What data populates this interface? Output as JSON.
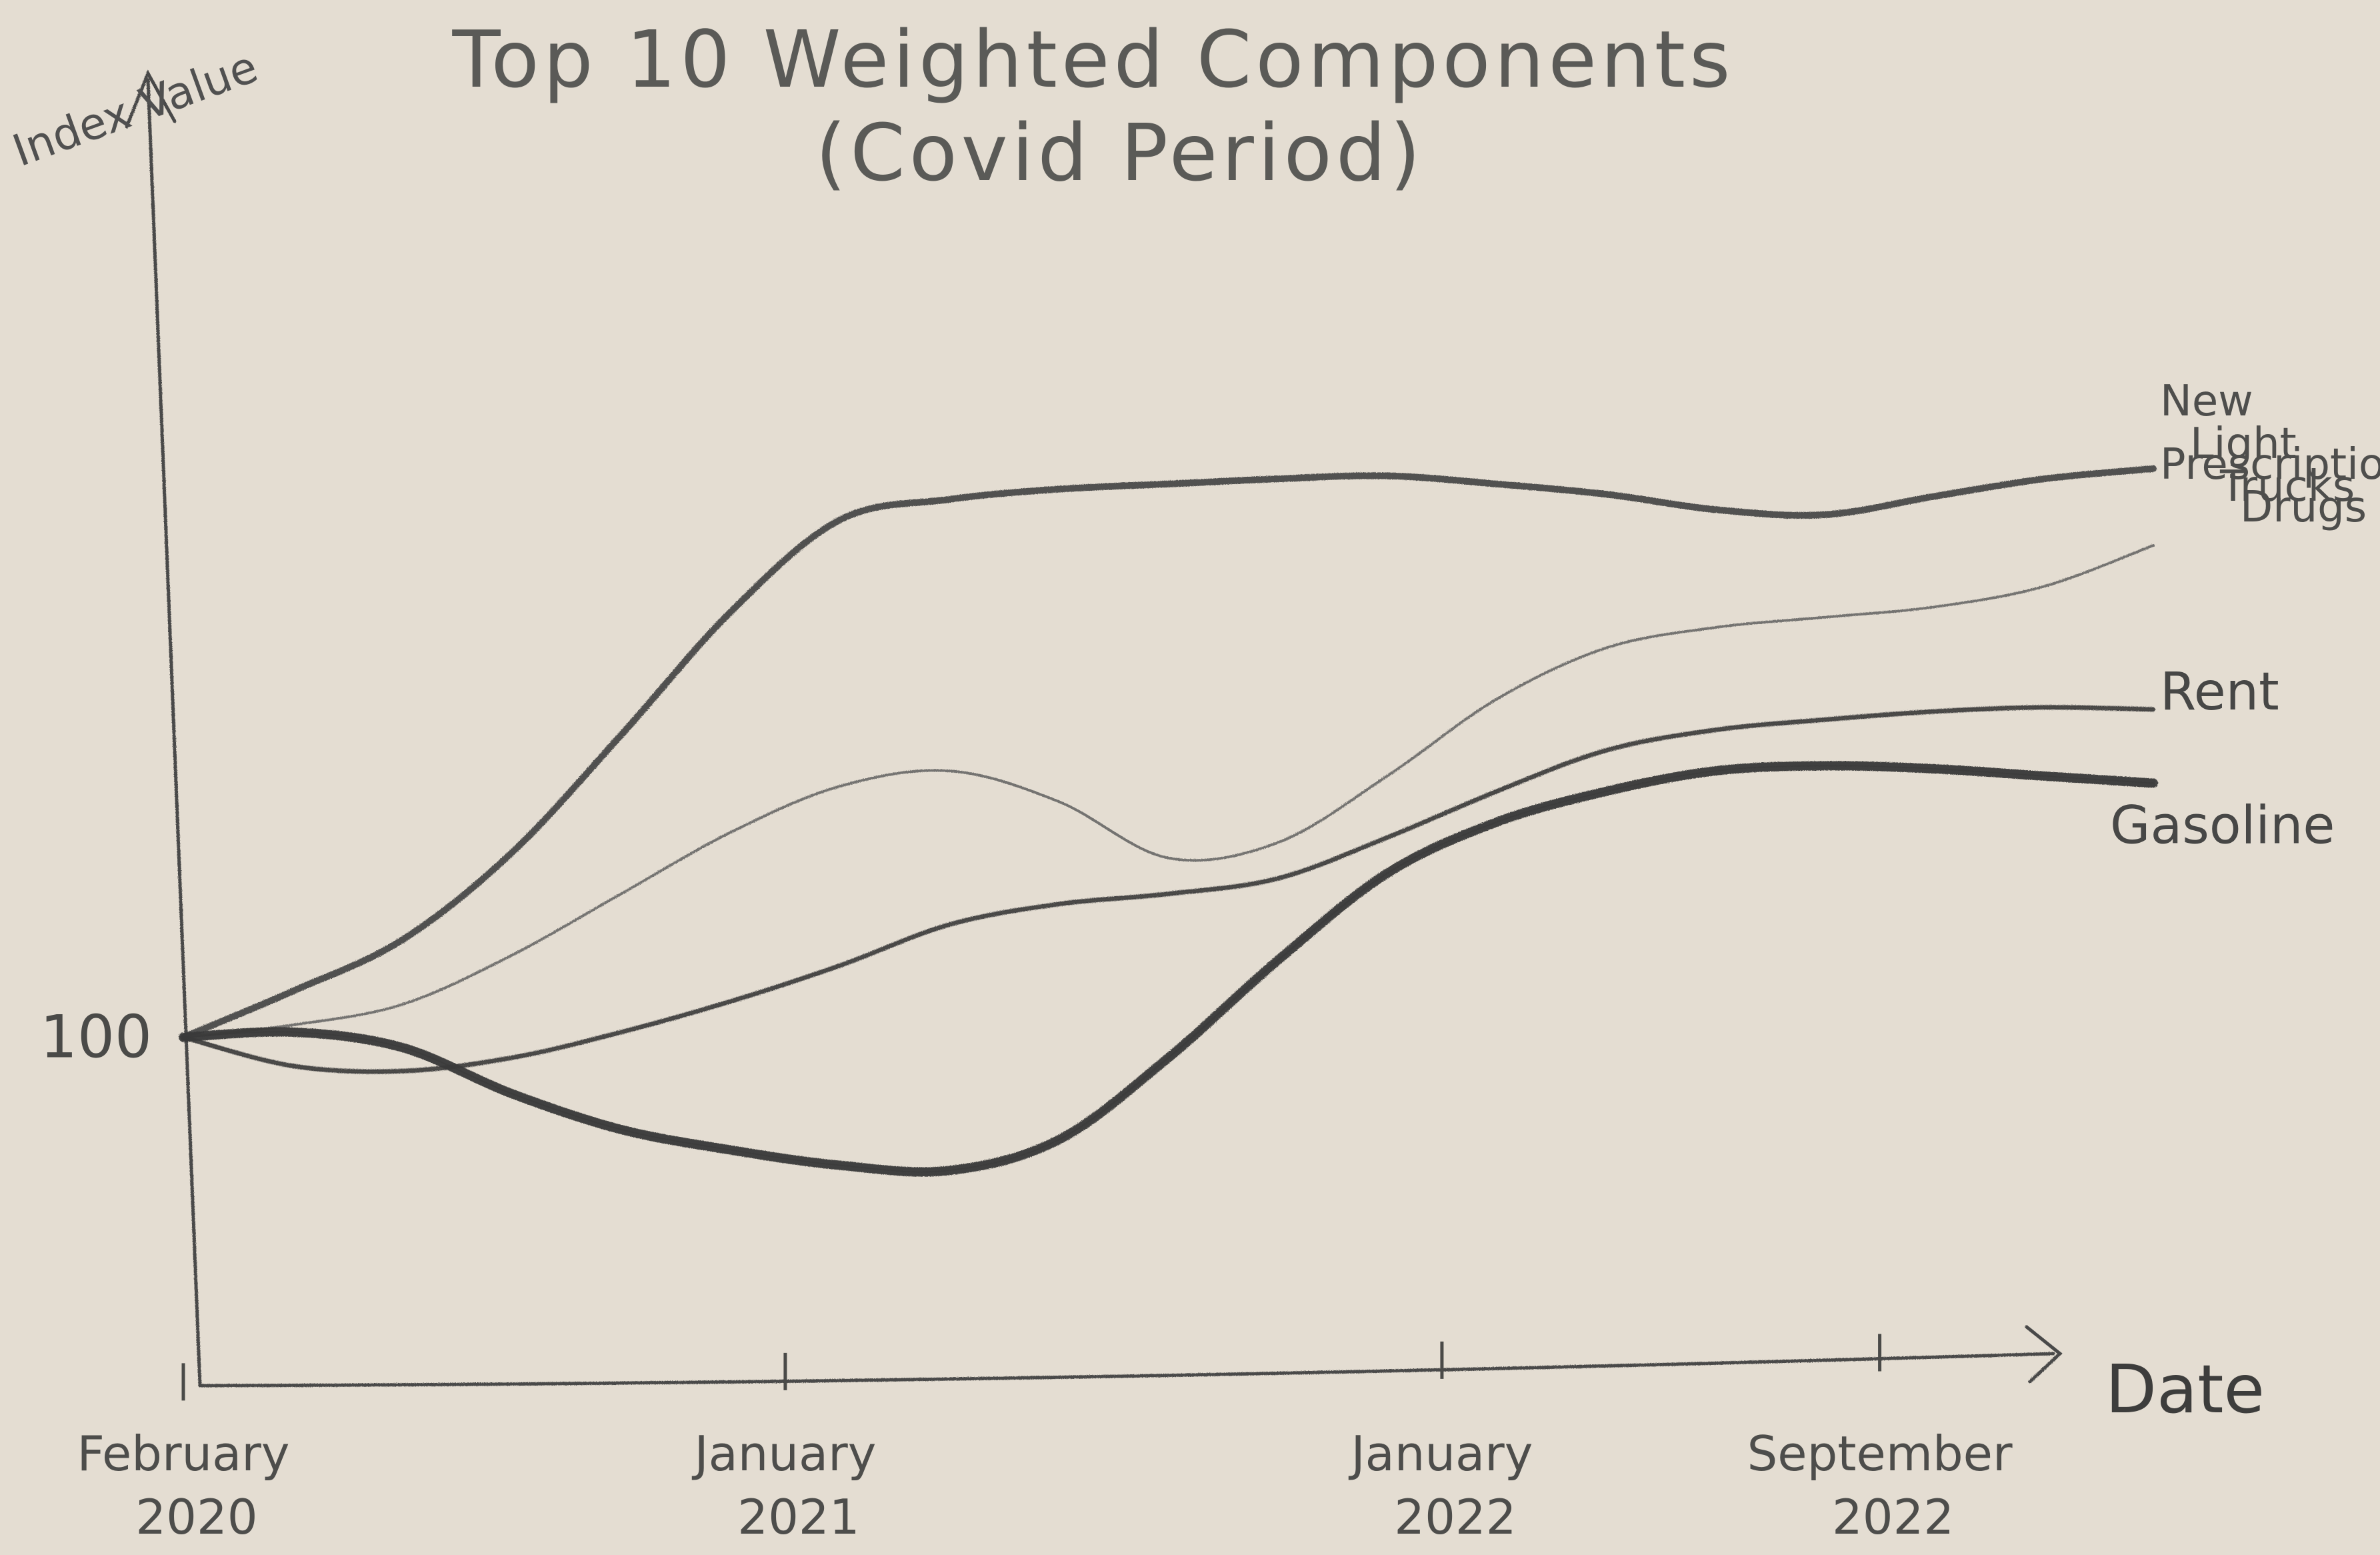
{
  "chart_data": {
    "type": "line",
    "title": "Top 10 Weighted Components",
    "subtitle": "(Covid Period)",
    "xlabel": "Date",
    "ylabel": "Index Value",
    "x_ticks": [
      "February 2020",
      "January 2021",
      "January 2022",
      "September 2022"
    ],
    "y_ticks": [
      100
    ],
    "grid": false,
    "legend": "labels at line ends (right)",
    "x": [
      "2020-02",
      "2020-04",
      "2020-06",
      "2020-08",
      "2020-10",
      "2020-12",
      "2021-02",
      "2021-04",
      "2021-06",
      "2021-08",
      "2021-10",
      "2021-12",
      "2022-02",
      "2022-04",
      "2022-06",
      "2022-08",
      "2022-10",
      "2022-12",
      "2023-02"
    ],
    "ylim": [
      66,
      170
    ],
    "series": [
      {
        "name": "New Light Trucks",
        "values": [
          100,
          104.5,
          109.5,
          118,
          129.5,
          141.5,
          150.5,
          152.5,
          153.5,
          154,
          154.5,
          154.8,
          154,
          153,
          151.5,
          151,
          152.8,
          154.5,
          155.5
        ],
        "stroke": "#4b4b4b"
      },
      {
        "name": "Prescription Drugs",
        "values": [
          100,
          101.2,
          103.2,
          108,
          114,
          120,
          124.5,
          126,
          123,
          117.5,
          119,
          125.5,
          133,
          138,
          140,
          141,
          142,
          144,
          148
        ],
        "stroke": "#6a6a68"
      },
      {
        "name": "Rent",
        "values": [
          100,
          97.2,
          96.7,
          98,
          100.5,
          103.5,
          107,
          111,
          113,
          114,
          115.5,
          119.5,
          124,
          128,
          130,
          131,
          131.8,
          132.2,
          132
        ],
        "stroke": "#3f3f3e"
      },
      {
        "name": "Gasoline",
        "values": [
          100,
          100.5,
          99,
          94.5,
          91,
          89,
          87.5,
          87,
          90,
          98,
          107.5,
          116,
          121,
          124,
          126,
          126.5,
          126.2,
          125.5,
          124.8
        ],
        "stroke": "#3a3a39"
      }
    ],
    "colors": {
      "background": "#e4ddd2",
      "axis": "#4a4a48",
      "pencil": "#4b4b4b"
    }
  }
}
